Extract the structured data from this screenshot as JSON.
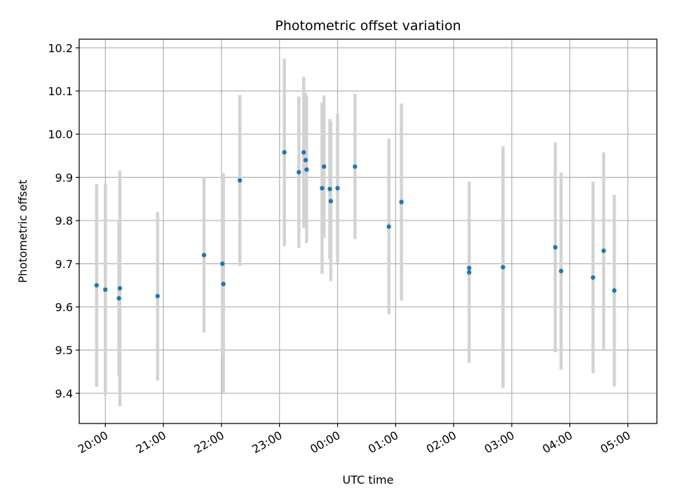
{
  "chart_data": {
    "type": "scatter",
    "title": "Photometric offset variation",
    "xlabel": "UTC time",
    "ylabel": "Photometric offset",
    "x_ticks": [
      "20:00",
      "21:00",
      "22:00",
      "23:00",
      "00:00",
      "01:00",
      "02:00",
      "03:00",
      "04:00",
      "05:00"
    ],
    "y_ticks": [
      "9.4",
      "9.5",
      "9.6",
      "9.7",
      "9.8",
      "9.9",
      "10.0",
      "10.1",
      "10.2"
    ],
    "xlim": [
      "19:33",
      "05:30"
    ],
    "ylim": [
      9.33,
      10.22
    ],
    "grid": true,
    "point_color": "#1f77b4",
    "errorbar_color": "#d3d3d3",
    "points": [
      {
        "time": "19:51",
        "y": 9.65,
        "err": 0.235
      },
      {
        "time": "20:00",
        "y": 9.64,
        "err": 0.245
      },
      {
        "time": "20:14",
        "y": 9.62,
        "err": 0.18
      },
      {
        "time": "20:15",
        "y": 9.643,
        "err": 0.273
      },
      {
        "time": "20:54",
        "y": 9.625,
        "err": 0.195
      },
      {
        "time": "21:42",
        "y": 9.72,
        "err": 0.18
      },
      {
        "time": "22:01",
        "y": 9.7,
        "err": 0.21
      },
      {
        "time": "22:02",
        "y": 9.653,
        "err": 0.255
      },
      {
        "time": "22:19",
        "y": 9.893,
        "err": 0.198
      },
      {
        "time": "23:05",
        "y": 9.958,
        "err": 0.217
      },
      {
        "time": "23:20",
        "y": 9.912,
        "err": 0.175
      },
      {
        "time": "23:25",
        "y": 9.958,
        "err": 0.175
      },
      {
        "time": "23:27",
        "y": 9.94,
        "err": 0.155
      },
      {
        "time": "23:28",
        "y": 9.918,
        "err": 0.17
      },
      {
        "time": "23:44",
        "y": 9.875,
        "err": 0.198
      },
      {
        "time": "23:46",
        "y": 9.925,
        "err": 0.165
      },
      {
        "time": "23:52",
        "y": 9.873,
        "err": 0.162
      },
      {
        "time": "23:53",
        "y": 9.845,
        "err": 0.185
      },
      {
        "time": "00:00",
        "y": 9.875,
        "err": 0.172
      },
      {
        "time": "00:18",
        "y": 9.925,
        "err": 0.168
      },
      {
        "time": "00:53",
        "y": 9.786,
        "err": 0.203
      },
      {
        "time": "01:06",
        "y": 9.843,
        "err": 0.228
      },
      {
        "time": "02:16",
        "y": 9.68,
        "err": 0.21
      },
      {
        "time": "02:16",
        "y": 9.69,
        "err": 0.2
      },
      {
        "time": "02:51",
        "y": 9.692,
        "err": 0.28
      },
      {
        "time": "03:45",
        "y": 9.738,
        "err": 0.243
      },
      {
        "time": "03:51",
        "y": 9.683,
        "err": 0.228
      },
      {
        "time": "04:24",
        "y": 9.668,
        "err": 0.222
      },
      {
        "time": "04:35",
        "y": 9.73,
        "err": 0.228
      },
      {
        "time": "04:46",
        "y": 9.638,
        "err": 0.222
      }
    ]
  }
}
